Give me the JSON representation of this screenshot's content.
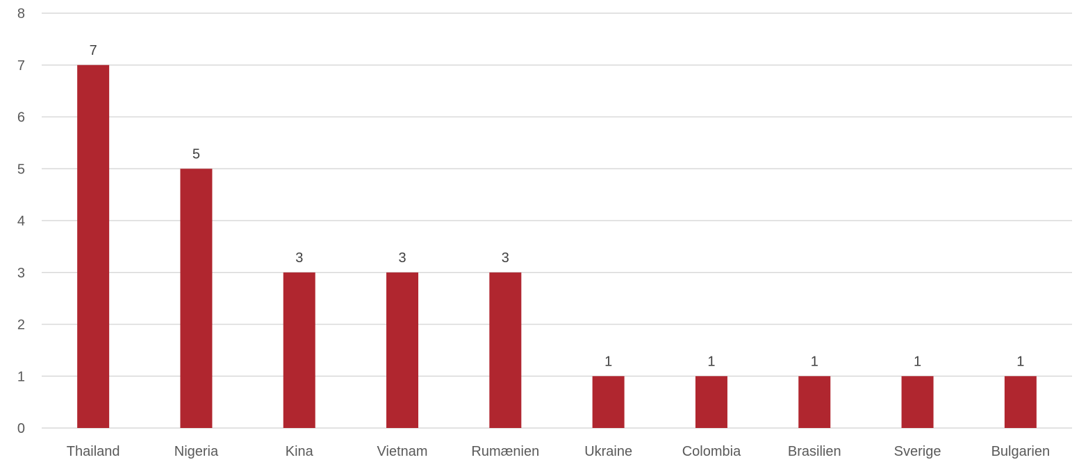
{
  "chart_data": {
    "type": "bar",
    "title": "",
    "xlabel": "",
    "ylabel": "",
    "categories": [
      "Thailand",
      "Nigeria",
      "Kina",
      "Vietnam",
      "Rumænien",
      "Ukraine",
      "Colombia",
      "Brasilien",
      "Sverige",
      "Bulgarien"
    ],
    "values": [
      7,
      5,
      3,
      3,
      3,
      1,
      1,
      1,
      1,
      1
    ],
    "data_labels": [
      "7",
      "5",
      "3",
      "3",
      "3",
      "1",
      "1",
      "1",
      "1",
      "1"
    ],
    "ylim": [
      0,
      8
    ],
    "yticks": [
      "0",
      "1",
      "2",
      "3",
      "4",
      "5",
      "6",
      "7",
      "8"
    ],
    "grid": true,
    "legend": "none",
    "bar_color": "#b0262f",
    "grid_color": "#d9d9d9"
  }
}
